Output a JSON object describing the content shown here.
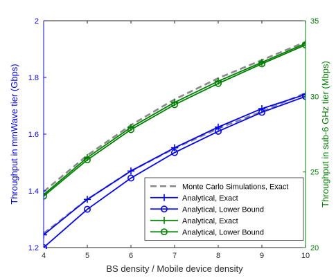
{
  "chart_data": {
    "type": "line",
    "title": "",
    "xlabel": "BS density / Mobile device density",
    "ylabel_left": "Throughput in mmWave tier (Gbps)",
    "ylabel_right": "Throughput in sub-6 GHz tier (Mbps)",
    "x": [
      4,
      5,
      6,
      7,
      8,
      9,
      10
    ],
    "xlim": [
      4,
      10
    ],
    "ylim_left": [
      1.2,
      2.0
    ],
    "ylim_right": [
      20,
      35
    ],
    "x_ticks": [
      4,
      5,
      6,
      7,
      8,
      9,
      10
    ],
    "x_tick_labels": [
      "4",
      "5",
      "6",
      "7",
      "8",
      "9",
      "10"
    ],
    "y_left_ticks": [
      1.2,
      1.4,
      1.6,
      1.8,
      2.0
    ],
    "y_left_tick_labels": [
      "1.2",
      "1.4",
      "1.6",
      "1.8",
      "2"
    ],
    "y_right_ticks": [
      20,
      25,
      30,
      35
    ],
    "y_right_tick_labels": [
      "20",
      "25",
      "30",
      "35"
    ],
    "grid": false,
    "legend_placement": "bottom-right",
    "series": [
      {
        "name": "Monte Carlo Simulations, Exact",
        "axis": "left",
        "color": "#888888",
        "line_style": "dashed",
        "marker": "none",
        "values": [
          1.25,
          1.37,
          1.47,
          1.55,
          1.62,
          1.68,
          1.745
        ]
      },
      {
        "name": "Monte Carlo Simulations, Exact",
        "axis": "right",
        "color": "#888888",
        "line_style": "dashed",
        "marker": "none",
        "show_in_legend": false,
        "values": [
          23.7,
          26.1,
          28.1,
          29.8,
          31.2,
          32.4,
          33.6
        ]
      },
      {
        "name": "Analytical, Exact",
        "axis": "left",
        "color": "#0000ff",
        "line_style": "solid",
        "marker": "plus",
        "values": [
          1.245,
          1.37,
          1.47,
          1.552,
          1.625,
          1.69,
          1.74
        ]
      },
      {
        "name": "Analytical, Lower Bound",
        "axis": "left",
        "color": "#0000ff",
        "line_style": "solid",
        "marker": "circle",
        "values": [
          1.2,
          1.335,
          1.445,
          1.535,
          1.61,
          1.677,
          1.733
        ]
      },
      {
        "name": "Analytical, Exact",
        "axis": "right",
        "color": "#008000",
        "line_style": "solid",
        "marker": "plus",
        "values": [
          23.5,
          25.95,
          27.95,
          29.6,
          31.0,
          32.25,
          33.5
        ]
      },
      {
        "name": "Analytical, Lower Bound",
        "axis": "right",
        "color": "#008000",
        "line_style": "solid",
        "marker": "circle",
        "values": [
          23.4,
          25.8,
          27.8,
          29.45,
          30.85,
          32.15,
          33.4
        ]
      }
    ],
    "colors": {
      "left_axis": "#0000ff",
      "right_axis": "#008000",
      "bottom_axis": "#262626",
      "box": "#262626"
    }
  }
}
